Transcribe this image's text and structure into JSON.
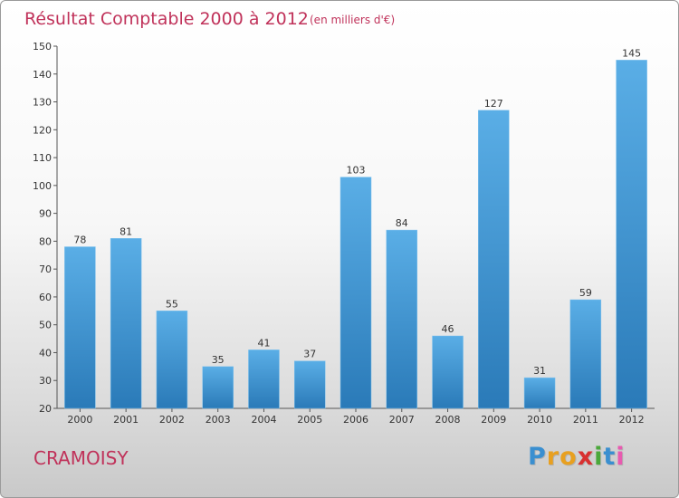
{
  "chart_data": {
    "type": "bar",
    "title": "Résultat Comptable 2000 à 2012",
    "subtitle": "(en milliers d'€)",
    "categories": [
      "2000",
      "2001",
      "2002",
      "2003",
      "2004",
      "2005",
      "2006",
      "2007",
      "2008",
      "2009",
      "2010",
      "2011",
      "2012"
    ],
    "values": [
      78,
      81,
      55,
      35,
      41,
      37,
      103,
      84,
      46,
      127,
      31,
      59,
      145
    ],
    "ylim": [
      20,
      150
    ],
    "yticks": [
      20,
      30,
      40,
      50,
      60,
      70,
      80,
      90,
      100,
      110,
      120,
      130,
      140,
      150
    ],
    "grid": false,
    "bar_color_top": "#5aaee6",
    "bar_color_bottom": "#2a7ab8"
  },
  "place_name": "CRAMOISY",
  "logo": {
    "letters": [
      "P",
      "r",
      "o",
      "x",
      "i",
      "t",
      "i"
    ],
    "colors": [
      "#3a8fd0",
      "#e8a020",
      "#e8a020",
      "#d83030",
      "#4aa83a",
      "#3a8fd0",
      "#e85ab0"
    ]
  }
}
